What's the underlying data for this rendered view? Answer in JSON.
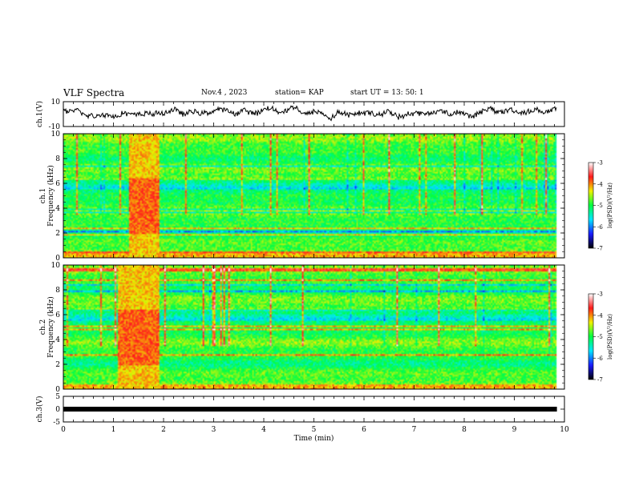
{
  "header": {
    "title": "VLF Spectra",
    "date": "Nov.4 , 2023",
    "station": "station= KAP",
    "start": "start UT = 13: 50: 1"
  },
  "colors": {
    "colormap": [
      "#000000",
      "#1a1aff",
      "#00e5ff",
      "#00ff40",
      "#f0f000",
      "#ff1a1a",
      "#ffffff"
    ],
    "trace": "#000000"
  },
  "chart_data": [
    {
      "type": "line",
      "panel": "ch1-waveform",
      "ylabel": "ch.1(V)",
      "ylim": [
        -10,
        10
      ],
      "yticks": [
        "10",
        "-10"
      ],
      "xlim": [
        0,
        10
      ],
      "description_values": {
        "baseline_V": 2,
        "amplitude_V": 4
      }
    },
    {
      "type": "heatmap",
      "panel": "ch1-spectrogram",
      "ylabel": "ch.1 Frequency (kHz)",
      "ylim": [
        0,
        10
      ],
      "yticks": [
        "0",
        "2",
        "4",
        "6",
        "8",
        "10"
      ],
      "xlim": [
        0,
        9.85
      ],
      "burst_window_min": [
        1.3,
        1.9
      ],
      "colorbar": {
        "label": "log(PSD)(V²/Hz)",
        "range": [
          -7,
          -3
        ],
        "ticks": [
          "-3",
          "-4",
          "-5",
          "-6",
          "-7"
        ]
      }
    },
    {
      "type": "heatmap",
      "panel": "ch2-spectrogram",
      "ylabel": "ch.2 Frequency (kHz)",
      "ylim": [
        0,
        10
      ],
      "yticks": [
        "0",
        "2",
        "4",
        "6",
        "8",
        "10"
      ],
      "xlim": [
        0,
        9.85
      ],
      "burst_window_min": [
        1.1,
        1.9
      ],
      "colorbar": {
        "label": "log(PSD)(V²/Hz)",
        "range": [
          -7,
          -3
        ],
        "ticks": [
          "-3",
          "-4",
          "-5",
          "-6",
          "-7"
        ]
      }
    },
    {
      "type": "line",
      "panel": "ch3-waveform",
      "ylabel": "ch.3(V)",
      "ylim": [
        -5,
        5
      ],
      "yticks": [
        "5",
        "0",
        "-5"
      ],
      "xlim": [
        0,
        10
      ],
      "level_V": 0
    }
  ],
  "xaxis": {
    "label": "Time (min)",
    "range": [
      0,
      10
    ],
    "ticks": [
      "0",
      "1",
      "2",
      "3",
      "4",
      "5",
      "6",
      "7",
      "8",
      "9",
      "10"
    ]
  }
}
